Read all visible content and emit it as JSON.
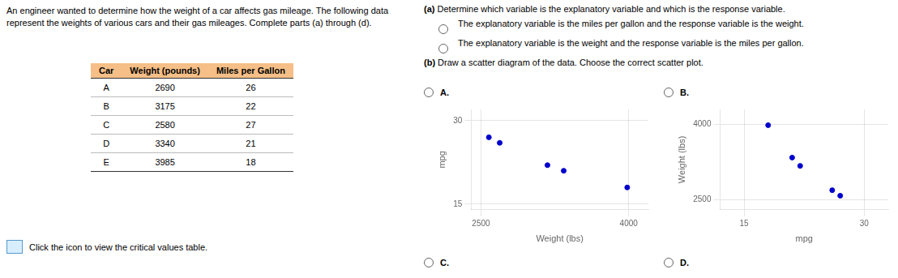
{
  "chart_data": [
    {
      "type": "table",
      "title": "An engineer wanted to determine how the weight of a car affects gas mileage. The following data represent the weights of various cars and their gas mileages. Complete parts (a) through (d).",
      "xlabel": "Car",
      "color": "#f5bf87",
      "categories": [
        "A",
        "B",
        "C",
        "D",
        "E"
      ],
      "series": [
        {
          "name": "Weight (pounds)",
          "values": [
            2690,
            3175,
            2580,
            3340,
            3985
          ]
        },
        {
          "name": "Miles per Gallon",
          "values": [
            26,
            22,
            27,
            21,
            18
          ]
        }
      ],
      "annotations": [
        "Click the icon to view the critical values table.",
        "(a) Determine which variable is the explanatory variable and which is the response variable.",
        "The explanatory variable is the miles per gallon and the response variable is the weight.",
        "The explanatory variable is the weight and the response variable is the miles per gallon.",
        "(b) Draw a scatter diagram of the data. Choose the correct scatter plot.",
        "C.",
        "D."
      ]
    },
    {
      "type": "scatter",
      "title": "A.",
      "xlabel": "Weight (lbs)",
      "ylabel": "mpg",
      "x": [
        2690,
        3175,
        2580,
        3340,
        3985
      ],
      "values": [
        26,
        22,
        27,
        21,
        18
      ],
      "color": "#0000cc",
      "xlim": [
        2400,
        4200
      ],
      "ylim": [
        14,
        32
      ],
      "xticks": [
        2500,
        4000
      ],
      "yticks": [
        15,
        30
      ],
      "grid": true
    },
    {
      "type": "scatter",
      "title": "B.",
      "xlabel": "mpg",
      "ylabel": "Weight (lbs)",
      "x": [
        26,
        22,
        27,
        21,
        18
      ],
      "values": [
        2690,
        3175,
        2580,
        3340,
        3985
      ],
      "color": "#0000cc",
      "xlim": [
        12,
        33
      ],
      "ylim": [
        2300,
        4300
      ],
      "xticks": [
        15,
        30
      ],
      "yticks": [
        2500,
        4000
      ],
      "grid": true
    }
  ]
}
